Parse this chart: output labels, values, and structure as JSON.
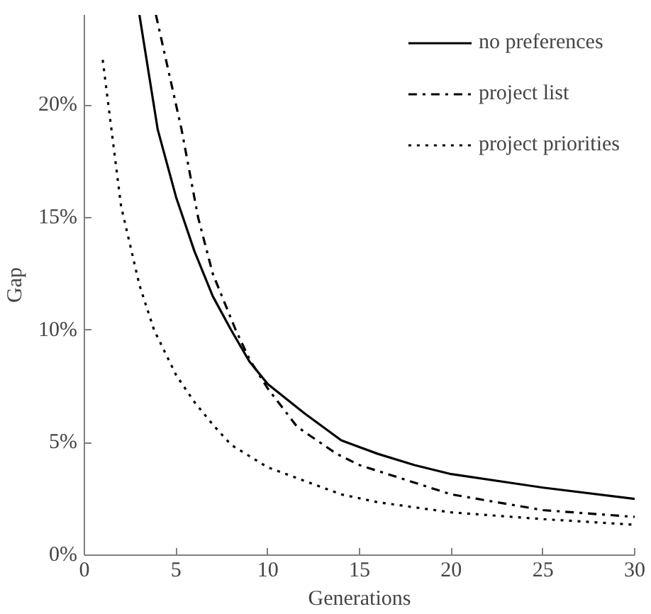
{
  "chart_data": {
    "type": "line",
    "xlabel": "Generations",
    "ylabel": "Gap",
    "xlim": [
      0,
      30
    ],
    "ylim": [
      0,
      24
    ],
    "xticks": [
      0,
      5,
      10,
      15,
      20,
      25,
      30
    ],
    "yticks": [
      {
        "value": 0,
        "label": "0%"
      },
      {
        "value": 5,
        "label": "5%"
      },
      {
        "value": 10,
        "label": "10%"
      },
      {
        "value": 15,
        "label": "15%"
      },
      {
        "value": 20,
        "label": "20%"
      }
    ],
    "grid": false,
    "legend": "top right",
    "marker": "none",
    "series": [
      {
        "name": "no preferences",
        "color": "#000000",
        "line_style": "solid",
        "x": [
          3,
          4,
          5,
          6,
          7,
          8,
          9,
          10,
          12,
          14,
          16,
          18,
          20,
          25,
          30
        ],
        "values": [
          24,
          18.9,
          15.9,
          13.5,
          11.5,
          10.0,
          8.6,
          7.6,
          6.3,
          5.1,
          4.5,
          4.0,
          3.6,
          3.0,
          2.5
        ]
      },
      {
        "name": "project list",
        "color": "#000000",
        "line_style": "dashdot",
        "x": [
          3.9,
          5.3,
          6.2,
          7,
          8.25,
          9,
          10,
          11.6,
          13.75,
          15,
          20,
          25,
          30
        ],
        "values": [
          24,
          18.9,
          15.0,
          12.5,
          10.0,
          8.7,
          7.4,
          5.7,
          4.5,
          4.0,
          2.7,
          2.0,
          1.7
        ]
      },
      {
        "name": "project priorities",
        "color": "#000000",
        "line_style": "dotted",
        "x": [
          1,
          2,
          3,
          3.8,
          5,
          6,
          7,
          8,
          10,
          12,
          14,
          16,
          20,
          25,
          30
        ],
        "values": [
          22.0,
          15.5,
          12.0,
          10.0,
          8.0,
          6.8,
          5.8,
          4.9,
          3.9,
          3.3,
          2.7,
          2.35,
          1.9,
          1.6,
          1.35
        ]
      }
    ]
  }
}
